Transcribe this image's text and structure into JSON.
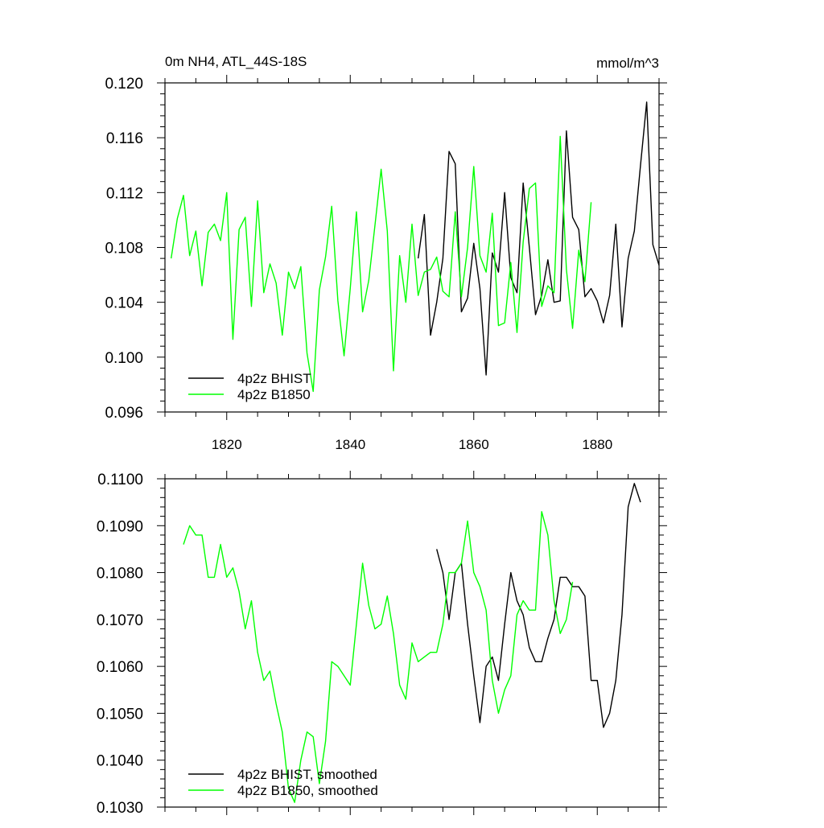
{
  "chart_data": [
    {
      "type": "line",
      "title": "0m NH4, ATL_44S-18S",
      "units": "mmol/m^3",
      "xlim": [
        1810,
        1890
      ],
      "ylim": [
        0.096,
        0.12
      ],
      "x_ticks": [
        1820,
        1840,
        1860,
        1880
      ],
      "y_ticks": [
        "0.096",
        "0.100",
        "0.104",
        "0.108",
        "0.112",
        "0.116",
        "0.120"
      ],
      "legend_position": "bottom-left",
      "series": [
        {
          "name": "4p2z BHIST",
          "color": "#000000",
          "x_start": 1851,
          "values": [
            0.1072,
            0.1104,
            0.1016,
            0.104,
            0.1072,
            0.115,
            0.1141,
            0.1033,
            0.1043,
            0.1083,
            0.105,
            0.0987,
            0.1076,
            0.1062,
            0.112,
            0.1058,
            0.1047,
            0.1127,
            0.108,
            0.1031,
            0.1045,
            0.1071,
            0.104,
            0.1041,
            0.1165,
            0.1102,
            0.1093,
            0.1044,
            0.105,
            0.1041,
            0.1025,
            0.1045,
            0.1097,
            0.1022,
            0.1072,
            0.1092,
            0.114,
            0.1186,
            0.1082,
            0.1067
          ]
        },
        {
          "name": "4p2z B1850",
          "color": "#00ff00",
          "x_start": 1811,
          "values": [
            0.1072,
            0.1101,
            0.1118,
            0.1074,
            0.1092,
            0.1052,
            0.1091,
            0.1097,
            0.1085,
            0.112,
            0.1013,
            0.1093,
            0.1102,
            0.1037,
            0.1114,
            0.1047,
            0.1068,
            0.1054,
            0.1016,
            0.1062,
            0.105,
            0.1066,
            0.1003,
            0.0975,
            0.1049,
            0.1073,
            0.111,
            0.1041,
            0.1001,
            0.105,
            0.1106,
            0.1033,
            0.1056,
            0.1096,
            0.1137,
            0.1092,
            0.099,
            0.1074,
            0.104,
            0.1097,
            0.1045,
            0.1062,
            0.1064,
            0.1073,
            0.1048,
            0.1044,
            0.1106,
            0.1044,
            0.108,
            0.1139,
            0.1074,
            0.1062,
            0.1105,
            0.1023,
            0.1025,
            0.1069,
            0.1018,
            0.1084,
            0.1123,
            0.1127,
            0.1037,
            0.1052,
            0.1047,
            0.1161,
            0.1064,
            0.1021,
            0.1078,
            0.1055,
            0.1113
          ]
        }
      ]
    },
    {
      "type": "line",
      "title": "",
      "units": "",
      "xlim": [
        1810,
        1890
      ],
      "ylim": [
        0.103,
        0.11
      ],
      "x_ticks": [
        1820,
        1840,
        1860,
        1880
      ],
      "y_ticks": [
        "0.1030",
        "0.1040",
        "0.1050",
        "0.1060",
        "0.1070",
        "0.1080",
        "0.1090",
        "0.1100"
      ],
      "legend_position": "bottom-left",
      "series": [
        {
          "name": "4p2z BHIST, smoothed",
          "color": "#000000",
          "x_start": 1854,
          "values": [
            0.1085,
            0.108,
            0.107,
            0.108,
            0.1082,
            0.1069,
            0.1058,
            0.1048,
            0.106,
            0.1062,
            0.1057,
            0.1069,
            0.108,
            0.1074,
            0.1071,
            0.1064,
            0.1061,
            0.1061,
            0.1066,
            0.107,
            0.1079,
            0.1079,
            0.1077,
            0.1077,
            0.1075,
            0.1057,
            0.1057,
            0.1047,
            0.105,
            0.1057,
            0.1071,
            0.1094,
            0.1099,
            0.1095
          ]
        },
        {
          "name": "4p2z B1850, smoothed",
          "color": "#00ff00",
          "x_start": 1813,
          "values": [
            0.1086,
            0.109,
            0.1088,
            0.1088,
            0.1079,
            0.1079,
            0.1086,
            0.1079,
            0.1081,
            0.1076,
            0.1068,
            0.1074,
            0.1063,
            0.1057,
            0.1059,
            0.1052,
            0.1046,
            0.1034,
            0.1031,
            0.104,
            0.1046,
            0.1045,
            0.1035,
            0.1044,
            0.1061,
            0.106,
            0.1058,
            0.1056,
            0.1069,
            0.1082,
            0.1073,
            0.1068,
            0.1069,
            0.1075,
            0.1067,
            0.1056,
            0.1053,
            0.1065,
            0.1061,
            0.1062,
            0.1063,
            0.1063,
            0.1069,
            0.108,
            0.108,
            0.1082,
            0.1091,
            0.108,
            0.1077,
            0.1072,
            0.1057,
            0.105,
            0.1055,
            0.1058,
            0.1071,
            0.1074,
            0.1072,
            0.1072,
            0.1093,
            0.1088,
            0.1074,
            0.1067,
            0.107,
            0.1078
          ]
        }
      ]
    }
  ]
}
